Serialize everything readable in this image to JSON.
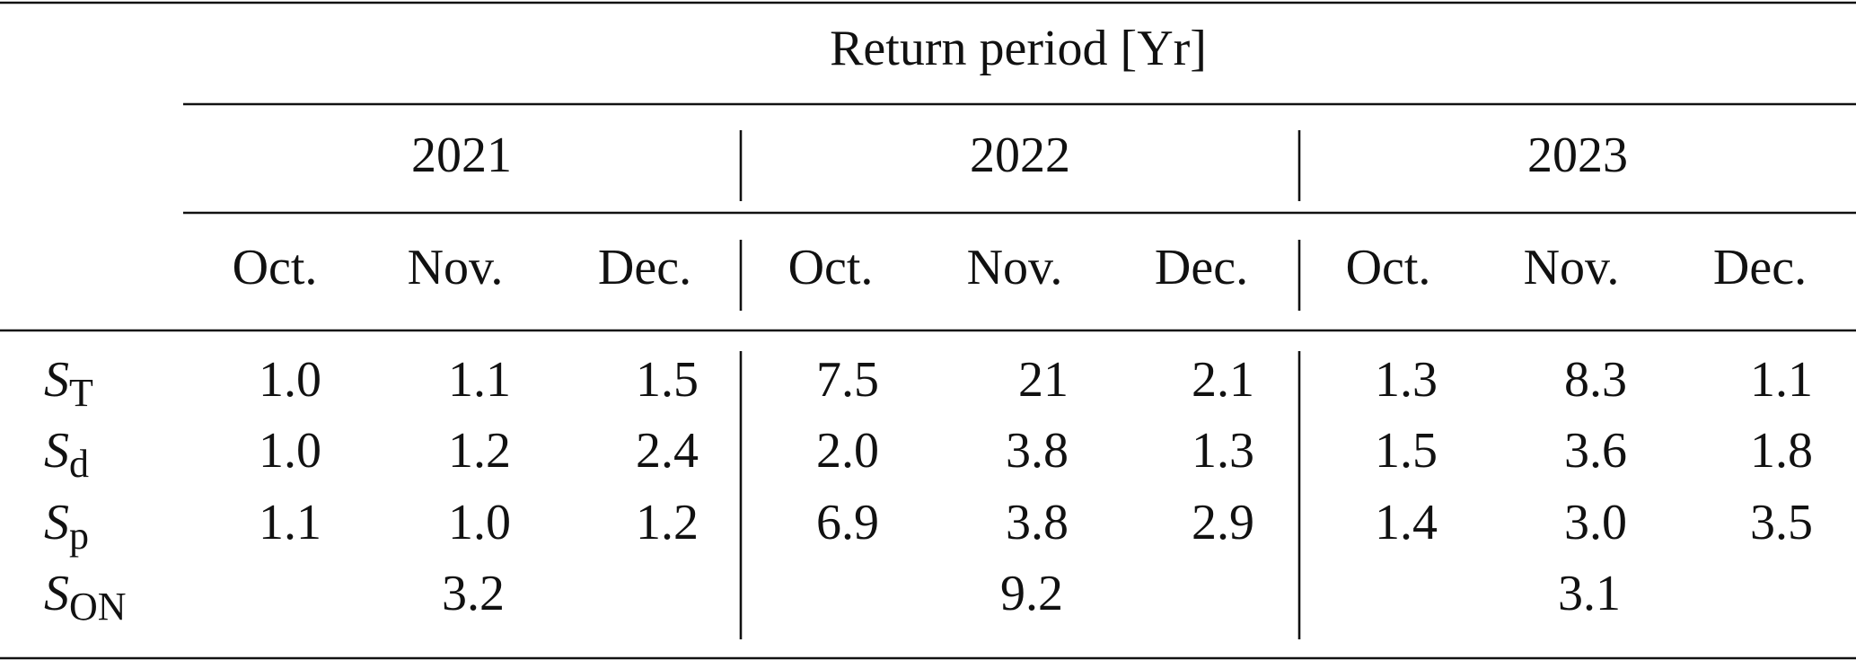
{
  "header": {
    "title": "Return period [Yr]",
    "years": [
      "2021",
      "2022",
      "2023"
    ],
    "months": [
      "Oct.",
      "Nov.",
      "Dec.",
      "Oct.",
      "Nov.",
      "Dec.",
      "Oct.",
      "Nov.",
      "Dec."
    ]
  },
  "rows": [
    {
      "symbol": "S",
      "subscript": "T",
      "values": [
        "1.0",
        "1.1",
        "1.5",
        "7.5",
        "21",
        "2.1",
        "1.3",
        "8.3",
        "1.1"
      ]
    },
    {
      "symbol": "S",
      "subscript": "d",
      "values": [
        "1.0",
        "1.2",
        "2.4",
        "2.0",
        "3.8",
        "1.3",
        "1.5",
        "3.6",
        "1.8"
      ]
    },
    {
      "symbol": "S",
      "subscript": "p",
      "values": [
        "1.1",
        "1.0",
        "1.2",
        "6.9",
        "3.8",
        "2.9",
        "1.4",
        "3.0",
        "3.5"
      ]
    },
    {
      "symbol": "S",
      "subscript": "ON",
      "values": [
        "3.2",
        "9.2",
        "3.1"
      ]
    }
  ]
}
